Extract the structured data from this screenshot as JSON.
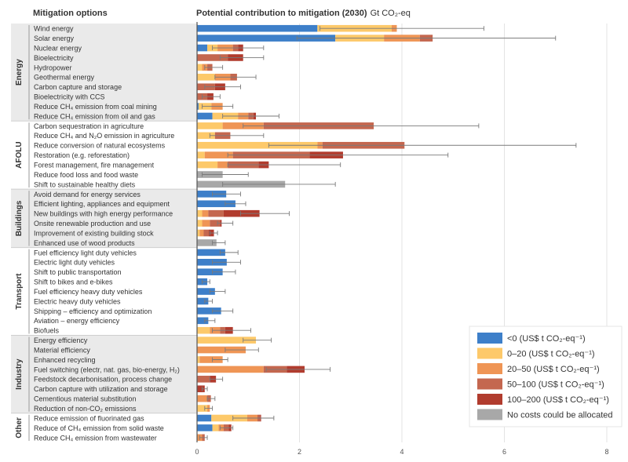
{
  "chart_data": {
    "type": "bar",
    "title": "",
    "left_header": "Mitigation options",
    "right_header": "Potential contribution to mitigation (2030)",
    "unit_label": "Gt CO₂-eq",
    "xlim": [
      0,
      8
    ],
    "x_ticks": [
      "0",
      "2",
      "4",
      "6",
      "8"
    ],
    "grid": true,
    "legend_position": "bottom-right",
    "colors": {
      "neg": "#3d7fc9",
      "c0_20": "#fdc96a",
      "c20_50": "#ef9555",
      "c50_100": "#c4674f",
      "c100_200": "#b13c2e",
      "nocost": "#a8a8a8",
      "band": "#eaeaea",
      "grid": "#e3e3e3",
      "error": "#7a7a7a",
      "text": "#333333",
      "axis": "#555555"
    },
    "legend": [
      {
        "key": "neg",
        "label": "<0 (US$ t CO₂-eq⁻¹)"
      },
      {
        "key": "c0_20",
        "label": "0–20 (US$ t CO₂-eq⁻¹)"
      },
      {
        "key": "c20_50",
        "label": "20–50 (US$ t CO₂-eq⁻¹)"
      },
      {
        "key": "c50_100",
        "label": "50–100 (US$ t CO₂-eq⁻¹)"
      },
      {
        "key": "c100_200",
        "label": "100–200 (US$ t CO₂-eq⁻¹)"
      },
      {
        "key": "nocost",
        "label": "No costs could be allocated"
      }
    ],
    "sectors": [
      {
        "name": "Energy",
        "options": [
          {
            "label": "Wind energy",
            "segments": [
              [
                "neg",
                2.35
              ],
              [
                "c0_20",
                1.45
              ],
              [
                "c20_50",
                0.1
              ]
            ],
            "err": [
              2.4,
              5.6
            ]
          },
          {
            "label": "Solar energy",
            "segments": [
              [
                "neg",
                2.7
              ],
              [
                "c0_20",
                0.95
              ],
              [
                "c20_50",
                0.7
              ],
              [
                "c50_100",
                0.25
              ]
            ],
            "err": [
              1.95,
              7.0
            ]
          },
          {
            "label": "Nuclear energy",
            "segments": [
              [
                "neg",
                0.2
              ],
              [
                "c0_20",
                0.2
              ],
              [
                "c20_50",
                0.3
              ],
              [
                "c50_100",
                0.1
              ],
              [
                "c100_200",
                0.1
              ]
            ],
            "err": [
              0.3,
              1.3
            ]
          },
          {
            "label": "Bioelectricity",
            "segments": [
              [
                "c50_100",
                0.6
              ],
              [
                "c100_200",
                0.3
              ]
            ],
            "err": [
              0.45,
              1.3
            ]
          },
          {
            "label": "Hydropower",
            "segments": [
              [
                "c0_20",
                0.1
              ],
              [
                "c20_50",
                0.1
              ],
              [
                "c50_100",
                0.1
              ]
            ],
            "err": [
              0.15,
              0.5
            ]
          },
          {
            "label": "Geothermal energy",
            "segments": [
              [
                "c0_20",
                0.35
              ],
              [
                "c20_50",
                0.3
              ],
              [
                "c50_100",
                0.13
              ]
            ],
            "err": [
              0.35,
              1.15
            ]
          },
          {
            "label": "Carbon capture and storage",
            "segments": [
              [
                "c50_100",
                0.35
              ],
              [
                "c100_200",
                0.2
              ]
            ],
            "err": [
              0.15,
              0.85
            ]
          },
          {
            "label": "Bioelectricity with CCS",
            "segments": [
              [
                "c50_100",
                0.2
              ],
              [
                "c100_200",
                0.12
              ]
            ],
            "err": [
              0.1,
              0.45
            ]
          },
          {
            "label": "Reduce CH₄ emission from coal mining",
            "segments": [
              [
                "neg",
                0.03
              ],
              [
                "c0_20",
                0.25
              ],
              [
                "c20_50",
                0.22
              ]
            ],
            "err": [
              0.1,
              0.7
            ]
          },
          {
            "label": "Reduce CH₄ emission from oil and gas",
            "segments": [
              [
                "neg",
                0.3
              ],
              [
                "c0_20",
                0.5
              ],
              [
                "c20_50",
                0.2
              ],
              [
                "c50_100",
                0.1
              ],
              [
                "c100_200",
                0.05
              ]
            ],
            "err": [
              0.5,
              1.6
            ]
          }
        ]
      },
      {
        "name": "AFOLU",
        "options": [
          {
            "label": "Carbon sequestration in agriculture",
            "segments": [
              [
                "c0_20",
                0.5
              ],
              [
                "c20_50",
                0.8
              ],
              [
                "c50_100",
                2.15
              ]
            ],
            "err": [
              0.9,
              5.5
            ]
          },
          {
            "label": "Reduce CH₄ and N₂O emission in agriculture",
            "segments": [
              [
                "c0_20",
                0.35
              ],
              [
                "c50_100",
                0.3
              ]
            ],
            "err": [
              0.25,
              1.3
            ]
          },
          {
            "label": "Reduce conversion of natural ecosystems",
            "segments": [
              [
                "c0_20",
                2.35
              ],
              [
                "c20_50",
                0.1
              ],
              [
                "c50_100",
                1.6
              ]
            ],
            "err": [
              1.4,
              7.4
            ]
          },
          {
            "label": "Restoration (e.g. reforestation)",
            "segments": [
              [
                "c0_20",
                0.15
              ],
              [
                "c20_50",
                0.55
              ],
              [
                "c50_100",
                1.5
              ],
              [
                "c100_200",
                0.65
              ]
            ],
            "err": [
              0.6,
              4.9
            ]
          },
          {
            "label": "Forest management, fire management",
            "segments": [
              [
                "c0_20",
                0.4
              ],
              [
                "c20_50",
                0.2
              ],
              [
                "c50_100",
                0.6
              ],
              [
                "c100_200",
                0.2
              ]
            ],
            "err": [
              0.6,
              2.8
            ]
          },
          {
            "label": "Reduce food loss and food waste",
            "segments": [
              [
                "nocost",
                0.5
              ]
            ],
            "err": [
              0.1,
              1.0
            ]
          },
          {
            "label": "Shift to sustainable healthy diets",
            "segments": [
              [
                "nocost",
                1.72
              ]
            ],
            "err": [
              0.5,
              2.7
            ]
          }
        ]
      },
      {
        "name": "Buildings",
        "options": [
          {
            "label": "Avoid demand for energy services",
            "segments": [
              [
                "neg",
                0.57
              ]
            ],
            "err": [
              0.3,
              0.85
            ]
          },
          {
            "label": "Efficient lighting, appliances and equipment",
            "segments": [
              [
                "neg",
                0.75
              ]
            ],
            "err": [
              0.55,
              0.95
            ]
          },
          {
            "label": "New buildings with high energy performance",
            "segments": [
              [
                "c0_20",
                0.1
              ],
              [
                "c20_50",
                0.12
              ],
              [
                "c50_100",
                0.3
              ],
              [
                "c100_200",
                0.7
              ]
            ],
            "err": [
              0.85,
              1.8
            ]
          },
          {
            "label": "Onsite renewable production and use",
            "segments": [
              [
                "c0_20",
                0.1
              ],
              [
                "c20_50",
                0.15
              ],
              [
                "c50_100",
                0.2
              ],
              [
                "c100_200",
                0.03
              ]
            ],
            "err": [
              0.4,
              0.7
            ]
          },
          {
            "label": "Improvement of existing building stock",
            "segments": [
              [
                "c0_20",
                0.05
              ],
              [
                "c20_50",
                0.08
              ],
              [
                "c50_100",
                0.1
              ],
              [
                "c100_200",
                0.1
              ]
            ],
            "err": [
              0.25,
              0.4
            ]
          },
          {
            "label": "Enhanced use of wood products",
            "segments": [
              [
                "nocost",
                0.38
              ]
            ],
            "err": [
              0.3,
              0.55
            ]
          }
        ]
      },
      {
        "name": "Transport",
        "options": [
          {
            "label": "Fuel efficiency light duty vehicles",
            "segments": [
              [
                "neg",
                0.55
              ]
            ],
            "err": [
              0.45,
              0.8
            ]
          },
          {
            "label": "Electric light duty vehicles",
            "segments": [
              [
                "neg",
                0.58
              ]
            ],
            "err": [
              0.3,
              0.85
            ]
          },
          {
            "label": "Shift to public transportation",
            "segments": [
              [
                "neg",
                0.5
              ]
            ],
            "err": [
              0.3,
              0.75
            ]
          },
          {
            "label": "Shift to bikes and e-bikes",
            "segments": [
              [
                "neg",
                0.2
              ]
            ],
            "err": [
              0.1,
              0.25
            ]
          },
          {
            "label": "Fuel efficiency heavy duty vehicles",
            "segments": [
              [
                "neg",
                0.35
              ]
            ],
            "err": [
              0.25,
              0.55
            ]
          },
          {
            "label": "Electric heavy duty vehicles",
            "segments": [
              [
                "neg",
                0.22
              ]
            ],
            "err": [
              0.15,
              0.3
            ]
          },
          {
            "label": "Shipping – efficiency and optimization",
            "segments": [
              [
                "neg",
                0.47
              ]
            ],
            "err": [
              0.3,
              0.7
            ]
          },
          {
            "label": "Aviation – energy efficiency",
            "segments": [
              [
                "neg",
                0.22
              ]
            ],
            "err": [
              0.15,
              0.35
            ]
          },
          {
            "label": "Biofuels",
            "segments": [
              [
                "c0_20",
                0.25
              ],
              [
                "c20_50",
                0.2
              ],
              [
                "c50_100",
                0.1
              ],
              [
                "c100_200",
                0.15
              ]
            ],
            "err": [
              0.3,
              1.05
            ]
          }
        ]
      },
      {
        "name": "Industry",
        "options": [
          {
            "label": "Energy efficiency",
            "segments": [
              [
                "c0_20",
                1.15
              ]
            ],
            "err": [
              0.9,
              1.45
            ]
          },
          {
            "label": "Material efficiency",
            "segments": [
              [
                "c20_50",
                0.95
              ]
            ],
            "err": [
              0.55,
              1.2
            ]
          },
          {
            "label": "Enhanced recycling",
            "segments": [
              [
                "c0_20",
                0.05
              ],
              [
                "c20_50",
                0.45
              ]
            ],
            "err": [
              0.3,
              0.6
            ]
          },
          {
            "label": "Fuel switching (electr, nat. gas, bio-energy, H₂)",
            "segments": [
              [
                "c20_50",
                1.3
              ],
              [
                "c50_100",
                0.45
              ],
              [
                "c100_200",
                0.35
              ]
            ],
            "err": [
              1.35,
              2.6
            ]
          },
          {
            "label": "Feedstock decarbonisation, process change",
            "segments": [
              [
                "c50_100",
                0.25
              ],
              [
                "c100_200",
                0.12
              ]
            ],
            "err": [
              0.25,
              0.5
            ]
          },
          {
            "label": "Carbon capture with utilization and storage",
            "segments": [
              [
                "c100_200",
                0.15
              ]
            ],
            "err": [
              0.1,
              0.2
            ]
          },
          {
            "label": "Cementious material substitution",
            "segments": [
              [
                "c20_50",
                0.2
              ],
              [
                "c50_100",
                0.07
              ]
            ],
            "err": [
              0.2,
              0.35
            ]
          },
          {
            "label": "Reduction of non-CO₂ emissions",
            "segments": [
              [
                "c0_20",
                0.2
              ],
              [
                "c20_50",
                0.05
              ]
            ],
            "err": [
              0.15,
              0.3
            ]
          }
        ]
      },
      {
        "name": "Other",
        "options": [
          {
            "label": "Reduce emission of fluorinated gas",
            "segments": [
              [
                "neg",
                0.28
              ],
              [
                "c0_20",
                0.7
              ],
              [
                "c20_50",
                0.2
              ],
              [
                "c50_100",
                0.05
              ],
              [
                "c100_200",
                0.02
              ]
            ],
            "err": [
              0.7,
              1.5
            ]
          },
          {
            "label": "Reduce of CH₄ emission from solid waste",
            "segments": [
              [
                "neg",
                0.3
              ],
              [
                "c0_20",
                0.12
              ],
              [
                "c20_50",
                0.1
              ],
              [
                "c50_100",
                0.1
              ],
              [
                "c100_200",
                0.05
              ]
            ],
            "err": [
              0.45,
              0.7
            ]
          },
          {
            "label": "Reduce CH₄ emission from wastewater",
            "segments": [
              [
                "c20_50",
                0.1
              ],
              [
                "c50_100",
                0.05
              ]
            ],
            "err": [
              0.05,
              0.2
            ]
          }
        ]
      }
    ]
  }
}
